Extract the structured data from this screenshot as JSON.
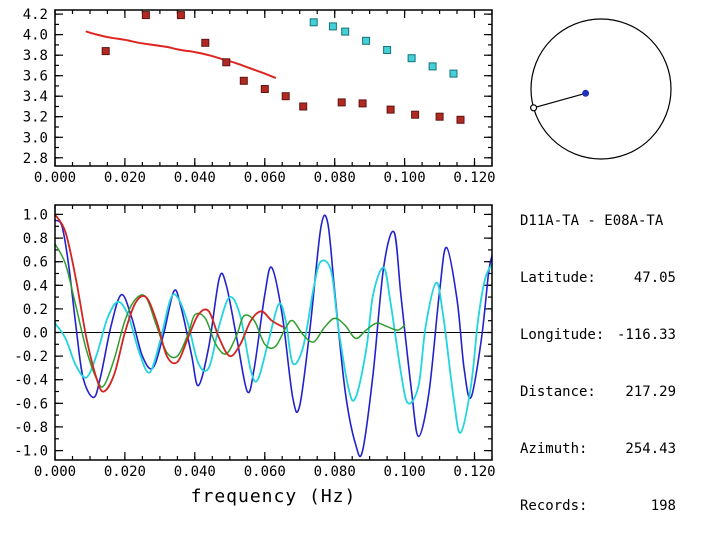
{
  "station": {
    "pair": "D11A-TA - E08A-TA",
    "rows": [
      {
        "label": "Latitude:",
        "value": "47.05"
      },
      {
        "label": "Longitude:",
        "value": "-116.33"
      },
      {
        "label": "Distance:",
        "value": "217.29"
      },
      {
        "label": "Azimuth:",
        "value": "254.43"
      },
      {
        "label": "Records:",
        "value": "198"
      }
    ]
  },
  "azimuth_plot": {
    "azimuth_deg": 254.43,
    "circle_color": "#000000",
    "station_dot_color": "#2233bb"
  },
  "colors": {
    "dispersion_curve_red": "#dd2622",
    "square_red": "#b22822",
    "square_red_edge": "#5f1510",
    "square_cyan": "#45cfd6",
    "square_cyan_edge": "#17727a",
    "trace_blue": "#2222cc",
    "trace_cyan": "#22d4dd",
    "trace_green": "#2f9e2f",
    "trace_red": "#d42420"
  },
  "chart_data": [
    {
      "id": "dispersion",
      "type": "line",
      "title": "",
      "xlabel": "",
      "ylabel": "",
      "xlim": [
        0,
        0.125
      ],
      "ylim": [
        2.72,
        4.24
      ],
      "x_minor_step": 0.005,
      "y_minor_step": 0.1,
      "x_ticks": [
        {
          "v": 0.0,
          "label": "0.000"
        },
        {
          "v": 0.02,
          "label": "0.020"
        },
        {
          "v": 0.04,
          "label": "0.040"
        },
        {
          "v": 0.06,
          "label": "0.060"
        },
        {
          "v": 0.08,
          "label": "0.080"
        },
        {
          "v": 0.1,
          "label": "0.100"
        },
        {
          "v": 0.12,
          "label": "0.120"
        }
      ],
      "y_ticks": [
        {
          "v": 2.8,
          "label": "2.8"
        },
        {
          "v": 3.0,
          "label": "3.0"
        },
        {
          "v": 3.2,
          "label": "3.2"
        },
        {
          "v": 3.4,
          "label": "3.4"
        },
        {
          "v": 3.6,
          "label": "3.6"
        },
        {
          "v": 3.8,
          "label": "3.8"
        },
        {
          "v": 4.0,
          "label": "4.0"
        },
        {
          "v": 4.2,
          "label": "4.2"
        }
      ],
      "series": [
        {
          "name": "reference-dispersion-curve",
          "color": "#dd2622",
          "width": 2,
          "points": [
            [
              0.009,
              4.03
            ],
            [
              0.012,
              4.0
            ],
            [
              0.016,
              3.97
            ],
            [
              0.02,
              3.95
            ],
            [
              0.024,
              3.92
            ],
            [
              0.028,
              3.9
            ],
            [
              0.032,
              3.88
            ],
            [
              0.036,
              3.85
            ],
            [
              0.04,
              3.83
            ],
            [
              0.044,
              3.8
            ],
            [
              0.048,
              3.76
            ],
            [
              0.052,
              3.72
            ],
            [
              0.056,
              3.67
            ],
            [
              0.06,
              3.62
            ],
            [
              0.063,
              3.58
            ]
          ]
        }
      ],
      "markers": [
        {
          "name": "measured-phase-velocity-red",
          "shape": "square",
          "size": 7,
          "fill": "#b22822",
          "edge": "#5f1510",
          "points": [
            [
              0.0145,
              3.84
            ],
            [
              0.026,
              4.19
            ],
            [
              0.036,
              4.19
            ],
            [
              0.043,
              3.92
            ],
            [
              0.049,
              3.73
            ],
            [
              0.054,
              3.55
            ],
            [
              0.06,
              3.47
            ],
            [
              0.066,
              3.4
            ],
            [
              0.071,
              3.3
            ],
            [
              0.082,
              3.34
            ],
            [
              0.088,
              3.33
            ],
            [
              0.096,
              3.27
            ],
            [
              0.103,
              3.22
            ],
            [
              0.11,
              3.2
            ],
            [
              0.116,
              3.17
            ]
          ]
        },
        {
          "name": "measured-phase-velocity-cyan",
          "shape": "square",
          "size": 7,
          "fill": "#45cfd6",
          "edge": "#17727a",
          "points": [
            [
              0.074,
              4.12
            ],
            [
              0.0795,
              4.08
            ],
            [
              0.083,
              4.03
            ],
            [
              0.089,
              3.94
            ],
            [
              0.095,
              3.85
            ],
            [
              0.102,
              3.77
            ],
            [
              0.108,
              3.69
            ],
            [
              0.114,
              3.62
            ]
          ]
        }
      ]
    },
    {
      "id": "waveforms",
      "type": "line",
      "title": "",
      "xlabel": "frequency (Hz)",
      "ylabel": "",
      "xlim": [
        0,
        0.125
      ],
      "ylim": [
        -1.08,
        1.08
      ],
      "x_minor_step": 0.005,
      "y_minor_step": 0.1,
      "zero_line": true,
      "x_ticks": [
        {
          "v": 0.0,
          "label": "0.000"
        },
        {
          "v": 0.02,
          "label": "0.020"
        },
        {
          "v": 0.04,
          "label": "0.040"
        },
        {
          "v": 0.06,
          "label": "0.060"
        },
        {
          "v": 0.08,
          "label": "0.080"
        },
        {
          "v": 0.1,
          "label": "0.100"
        },
        {
          "v": 0.12,
          "label": "0.120"
        }
      ],
      "y_ticks": [
        {
          "v": -1.0,
          "label": "-1.0"
        },
        {
          "v": -0.8,
          "label": "-0.8"
        },
        {
          "v": -0.6,
          "label": "-0.6"
        },
        {
          "v": -0.4,
          "label": "-0.4"
        },
        {
          "v": -0.2,
          "label": "-0.2"
        },
        {
          "v": 0.0,
          "label": "0.0"
        },
        {
          "v": 0.2,
          "label": "0.2"
        },
        {
          "v": 0.4,
          "label": "0.4"
        },
        {
          "v": 0.6,
          "label": "0.6"
        },
        {
          "v": 0.8,
          "label": "0.8"
        },
        {
          "v": 1.0,
          "label": "1.0"
        }
      ],
      "series": [
        {
          "name": "blue-trace",
          "color": "#2222cc",
          "width": 1.6,
          "points": [
            [
              0.0,
              0.95
            ],
            [
              0.002,
              0.9
            ],
            [
              0.004,
              0.55
            ],
            [
              0.006,
              0.05
            ],
            [
              0.008,
              -0.38
            ],
            [
              0.011,
              -0.55
            ],
            [
              0.013,
              -0.38
            ],
            [
              0.016,
              0.05
            ],
            [
              0.019,
              0.32
            ],
            [
              0.022,
              0.12
            ],
            [
              0.025,
              -0.2
            ],
            [
              0.028,
              -0.3
            ],
            [
              0.031,
              -0.02
            ],
            [
              0.034,
              0.35
            ],
            [
              0.036,
              0.22
            ],
            [
              0.039,
              -0.18
            ],
            [
              0.041,
              -0.45
            ],
            [
              0.044,
              -0.12
            ],
            [
              0.047,
              0.46
            ],
            [
              0.049,
              0.4
            ],
            [
              0.052,
              -0.05
            ],
            [
              0.055,
              -0.5
            ],
            [
              0.057,
              -0.3
            ],
            [
              0.06,
              0.32
            ],
            [
              0.062,
              0.55
            ],
            [
              0.065,
              0.15
            ],
            [
              0.068,
              -0.55
            ],
            [
              0.07,
              -0.62
            ],
            [
              0.073,
              0.05
            ],
            [
              0.076,
              0.88
            ],
            [
              0.078,
              0.93
            ],
            [
              0.08,
              0.35
            ],
            [
              0.083,
              -0.5
            ],
            [
              0.086,
              -0.95
            ],
            [
              0.088,
              -1.0
            ],
            [
              0.091,
              -0.35
            ],
            [
              0.094,
              0.55
            ],
            [
              0.097,
              0.85
            ],
            [
              0.099,
              0.3
            ],
            [
              0.102,
              -0.5
            ],
            [
              0.104,
              -0.88
            ],
            [
              0.107,
              -0.5
            ],
            [
              0.11,
              0.35
            ],
            [
              0.112,
              0.72
            ],
            [
              0.115,
              0.28
            ],
            [
              0.117,
              -0.3
            ],
            [
              0.119,
              -0.55
            ],
            [
              0.122,
              -0.05
            ],
            [
              0.124,
              0.5
            ],
            [
              0.125,
              0.65
            ]
          ]
        },
        {
          "name": "cyan-trace",
          "color": "#22d4dd",
          "width": 1.8,
          "points": [
            [
              0.0,
              0.08
            ],
            [
              0.003,
              -0.05
            ],
            [
              0.006,
              -0.28
            ],
            [
              0.009,
              -0.38
            ],
            [
              0.012,
              -0.18
            ],
            [
              0.015,
              0.12
            ],
            [
              0.018,
              0.26
            ],
            [
              0.021,
              0.14
            ],
            [
              0.024,
              -0.16
            ],
            [
              0.027,
              -0.34
            ],
            [
              0.03,
              -0.08
            ],
            [
              0.033,
              0.28
            ],
            [
              0.035,
              0.3
            ],
            [
              0.038,
              0.08
            ],
            [
              0.041,
              -0.26
            ],
            [
              0.044,
              -0.3
            ],
            [
              0.047,
              0.06
            ],
            [
              0.05,
              0.3
            ],
            [
              0.053,
              0.14
            ],
            [
              0.056,
              -0.32
            ],
            [
              0.058,
              -0.4
            ],
            [
              0.061,
              -0.08
            ],
            [
              0.064,
              0.24
            ],
            [
              0.066,
              0.1
            ],
            [
              0.068,
              -0.26
            ],
            [
              0.071,
              -0.12
            ],
            [
              0.074,
              0.38
            ],
            [
              0.076,
              0.6
            ],
            [
              0.079,
              0.52
            ],
            [
              0.081,
              0.05
            ],
            [
              0.084,
              -0.48
            ],
            [
              0.086,
              -0.55
            ],
            [
              0.089,
              -0.15
            ],
            [
              0.091,
              0.32
            ],
            [
              0.094,
              0.55
            ],
            [
              0.096,
              0.25
            ],
            [
              0.099,
              -0.35
            ],
            [
              0.101,
              -0.6
            ],
            [
              0.104,
              -0.45
            ],
            [
              0.106,
              0.05
            ],
            [
              0.109,
              0.42
            ],
            [
              0.111,
              0.15
            ],
            [
              0.114,
              -0.55
            ],
            [
              0.116,
              -0.85
            ],
            [
              0.119,
              -0.45
            ],
            [
              0.121,
              0.1
            ],
            [
              0.123,
              0.45
            ],
            [
              0.125,
              0.58
            ]
          ]
        },
        {
          "name": "green-trace",
          "color": "#2f9e2f",
          "width": 1.5,
          "points": [
            [
              0.0,
              0.75
            ],
            [
              0.003,
              0.58
            ],
            [
              0.006,
              0.22
            ],
            [
              0.009,
              -0.15
            ],
            [
              0.012,
              -0.4
            ],
            [
              0.014,
              -0.45
            ],
            [
              0.017,
              -0.22
            ],
            [
              0.02,
              0.1
            ],
            [
              0.023,
              0.28
            ],
            [
              0.026,
              0.3
            ],
            [
              0.029,
              0.06
            ],
            [
              0.032,
              -0.17
            ],
            [
              0.035,
              -0.2
            ],
            [
              0.038,
              -0.02
            ],
            [
              0.04,
              0.15
            ],
            [
              0.043,
              0.12
            ],
            [
              0.046,
              -0.1
            ],
            [
              0.049,
              -0.18
            ],
            [
              0.052,
              -0.02
            ],
            [
              0.054,
              0.14
            ],
            [
              0.057,
              0.1
            ],
            [
              0.06,
              -0.1
            ],
            [
              0.063,
              -0.12
            ],
            [
              0.066,
              0.04
            ],
            [
              0.068,
              0.1
            ],
            [
              0.071,
              -0.02
            ],
            [
              0.074,
              -0.08
            ],
            [
              0.077,
              0.04
            ],
            [
              0.08,
              0.12
            ],
            [
              0.083,
              0.06
            ],
            [
              0.086,
              -0.05
            ],
            [
              0.089,
              0.02
            ],
            [
              0.092,
              0.08
            ],
            [
              0.095,
              0.05
            ],
            [
              0.098,
              0.02
            ],
            [
              0.1,
              0.06
            ]
          ]
        },
        {
          "name": "red-trace",
          "color": "#d42420",
          "width": 1.8,
          "points": [
            [
              0.0,
              1.0
            ],
            [
              0.003,
              0.85
            ],
            [
              0.006,
              0.45
            ],
            [
              0.009,
              -0.05
            ],
            [
              0.012,
              -0.4
            ],
            [
              0.014,
              -0.5
            ],
            [
              0.017,
              -0.35
            ],
            [
              0.02,
              0.0
            ],
            [
              0.023,
              0.25
            ],
            [
              0.026,
              0.3
            ],
            [
              0.029,
              0.1
            ],
            [
              0.032,
              -0.2
            ],
            [
              0.035,
              -0.25
            ],
            [
              0.038,
              -0.05
            ],
            [
              0.041,
              0.15
            ],
            [
              0.044,
              0.18
            ],
            [
              0.047,
              -0.05
            ],
            [
              0.05,
              -0.2
            ],
            [
              0.053,
              -0.1
            ],
            [
              0.056,
              0.1
            ],
            [
              0.059,
              0.18
            ],
            [
              0.062,
              0.1
            ],
            [
              0.065,
              0.05
            ]
          ]
        }
      ]
    }
  ]
}
